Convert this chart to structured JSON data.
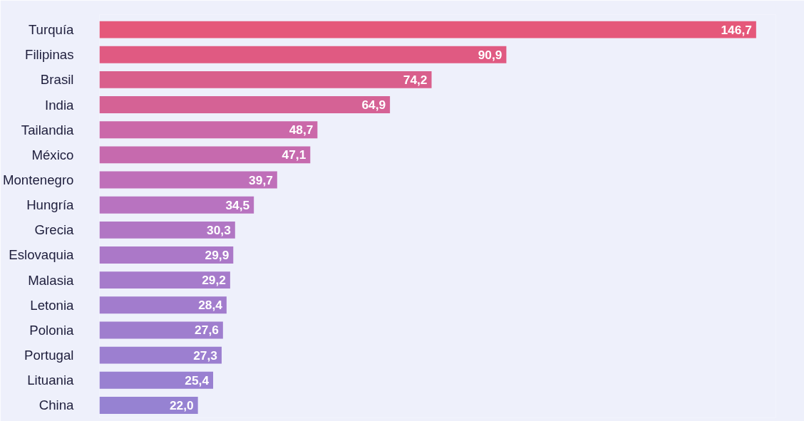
{
  "chart_data": {
    "type": "bar",
    "orientation": "horizontal",
    "data_labels": true,
    "grid": false,
    "tick_labels": "y",
    "categories": [
      "Turquía",
      "Filipinas",
      "Brasil",
      "India",
      "Tailandia",
      "México",
      "Montenegro",
      "Hungría",
      "Grecia",
      "Eslovaquia",
      "Malasia",
      "Letonia",
      "Polonia",
      "Portugal",
      "Lituania",
      "China"
    ],
    "values": [
      146.7,
      90.9,
      74.2,
      64.9,
      48.7,
      47.1,
      39.7,
      34.5,
      30.3,
      29.9,
      29.2,
      28.4,
      27.6,
      27.3,
      25.4,
      22.0
    ],
    "value_labels": [
      "146,7",
      "90,9",
      "74,2",
      "64,9",
      "48,7",
      "47,1",
      "39,7",
      "34,5",
      "30,3",
      "29,9",
      "29,2",
      "28,4",
      "27,6",
      "27,3",
      "25,4",
      "22,0"
    ],
    "colors": [
      "#e5587a",
      "#e05a82",
      "#d95f8c",
      "#d56295",
      "#cb68a9",
      "#c66aae",
      "#bf6fb9",
      "#b873c0",
      "#b176c4",
      "#ab78c8",
      "#a67bcb",
      "#a27ccd",
      "#9f7ece",
      "#9c7fd0",
      "#9980d1",
      "#9682d2"
    ]
  }
}
